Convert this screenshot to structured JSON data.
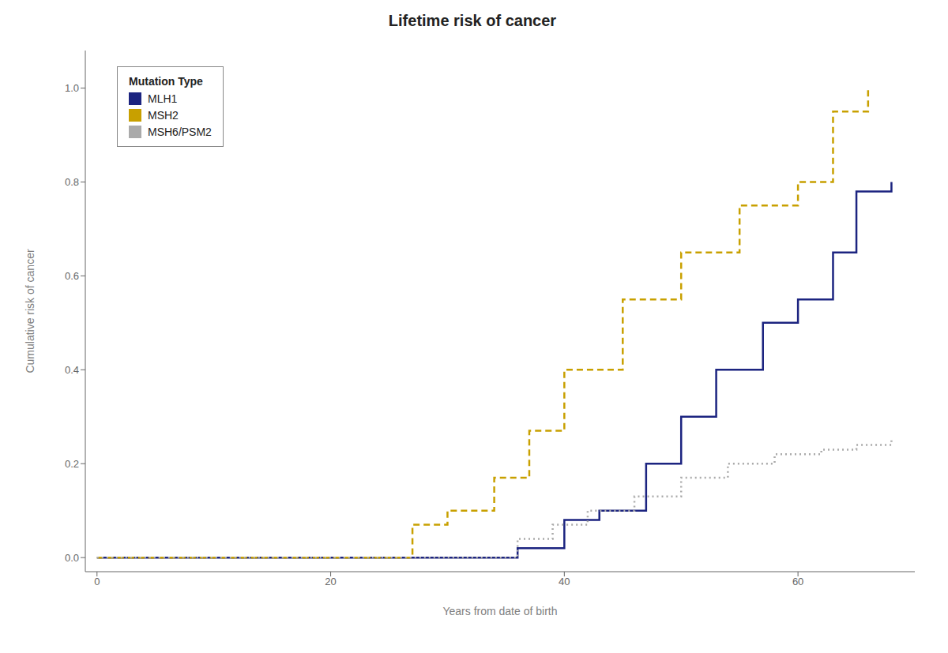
{
  "chart_data": {
    "type": "line",
    "title": "Lifetime risk of cancer",
    "x_label": "Years from date of birth",
    "y_label": "Cumulative risk of cancer",
    "legend_title": "Mutation Type",
    "legend": "upper left",
    "grid": false,
    "xlim": [
      -1,
      70
    ],
    "ylim": [
      -0.03,
      1.08
    ],
    "xticks": [
      0,
      20,
      40,
      60
    ],
    "yticks": [
      {
        "value": 0,
        "label": "0.0"
      },
      0.2,
      0.4,
      0.6,
      0.8,
      {
        "value": 1,
        "label": "1.0"
      }
    ],
    "series": [
      {
        "name": "MLH1",
        "color": "#1c2480",
        "line_style": "solid",
        "x": [
          0,
          33,
          36,
          40,
          43,
          47,
          50,
          53,
          57,
          60,
          63,
          65,
          68
        ],
        "values": [
          0.0,
          0.0,
          0.02,
          0.08,
          0.1,
          0.2,
          0.3,
          0.4,
          0.5,
          0.55,
          0.65,
          0.78,
          0.8
        ]
      },
      {
        "name": "MSH2",
        "color": "#c8a000",
        "line_style": "dashed",
        "x": [
          0,
          24,
          27,
          30,
          34,
          37,
          40,
          45,
          50,
          55,
          60,
          63,
          66
        ],
        "values": [
          0.0,
          0.0,
          0.07,
          0.1,
          0.17,
          0.27,
          0.4,
          0.55,
          0.65,
          0.75,
          0.8,
          0.95,
          1.0
        ]
      },
      {
        "name": "MSH6/PSM2",
        "color": "#aaaaaa",
        "line_style": "dotted",
        "x": [
          0,
          32,
          36,
          39,
          42,
          46,
          50,
          54,
          58,
          62,
          65,
          68
        ],
        "values": [
          0.0,
          0.0,
          0.04,
          0.07,
          0.1,
          0.13,
          0.17,
          0.2,
          0.22,
          0.23,
          0.24,
          0.25
        ]
      }
    ]
  }
}
